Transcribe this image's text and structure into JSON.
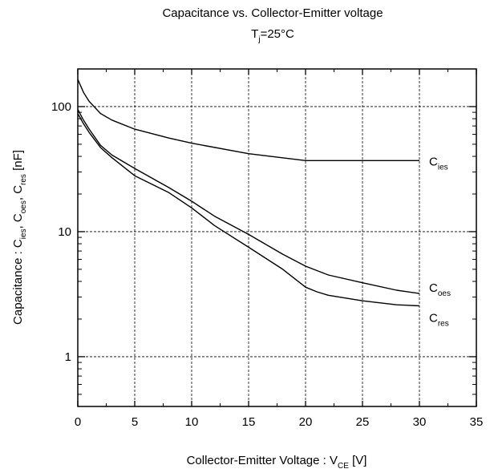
{
  "chart_data": {
    "type": "line",
    "title": "Capacitance vs. Collector-Emitter voltage",
    "subtitle": {
      "main": "T",
      "sub": "j",
      "rest": "=25°C"
    },
    "xlabel": {
      "main": "Collector-Emitter Voltage : V",
      "sub": "CE",
      "rest": " [V]"
    },
    "ylabel": {
      "p1": "Capacitance : C",
      "s1": "ies",
      "p2": ", C",
      "s2": "oes",
      "p3": ", C",
      "s3": "res",
      "p4": " [nF]"
    },
    "xlim": [
      0,
      35
    ],
    "ylim": [
      0.4,
      200
    ],
    "yscale": "log",
    "grid": true,
    "x_ticks": [
      "0",
      "5",
      "10",
      "15",
      "20",
      "25",
      "30",
      "35"
    ],
    "x_tick_values": [
      0,
      5,
      10,
      15,
      20,
      25,
      30,
      35
    ],
    "y_ticks": [
      "1",
      "10",
      "100"
    ],
    "y_tick_values": [
      1,
      10,
      100
    ],
    "series": [
      {
        "name": "C_ies",
        "label_main": "C",
        "label_sub": "ies",
        "x": [
          0,
          0.5,
          1,
          2,
          3,
          5,
          8,
          10,
          15,
          20,
          25,
          30
        ],
        "y": [
          165,
          130,
          110,
          88,
          78,
          66,
          56,
          51,
          42,
          37,
          37,
          37
        ]
      },
      {
        "name": "C_oes",
        "label_main": "C",
        "label_sub": "oes",
        "x": [
          0,
          0.5,
          1,
          2,
          3,
          5,
          8,
          10,
          12,
          15,
          18,
          20,
          22,
          25,
          28,
          30
        ],
        "y": [
          95,
          78,
          66,
          49,
          41,
          32,
          22.5,
          17.5,
          13.3,
          9.5,
          6.6,
          5.3,
          4.5,
          3.9,
          3.4,
          3.2
        ]
      },
      {
        "name": "C_res",
        "label_main": "C",
        "label_sub": "res",
        "x": [
          0,
          0.5,
          1,
          2,
          3,
          5,
          8,
          10,
          12,
          15,
          18,
          20,
          21,
          22,
          25,
          28,
          30
        ],
        "y": [
          88,
          73,
          62,
          47,
          39,
          28,
          20.5,
          15.5,
          11.2,
          7.5,
          5,
          3.6,
          3.3,
          3.1,
          2.8,
          2.6,
          2.55
        ]
      }
    ],
    "line_color": "#000000",
    "grid_color": "#000000"
  }
}
